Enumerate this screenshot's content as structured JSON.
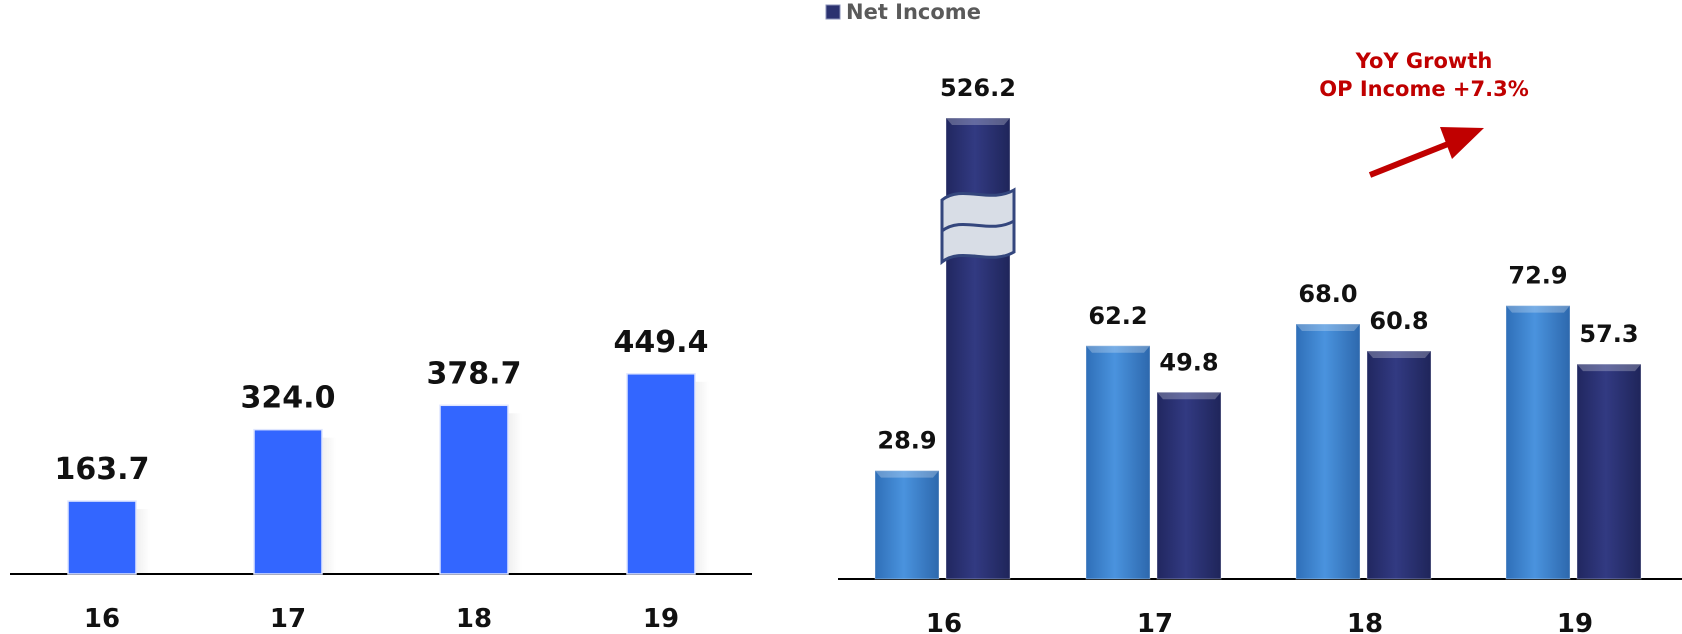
{
  "colors": {
    "left_bar": "#3366ff",
    "op_bar": "#3f88d6",
    "net_bar": "#2b3270",
    "break_fill": "#d8dde6",
    "break_stroke": "#34467d",
    "arrow": "#c00000"
  },
  "break_icon": "axis-break-icon",
  "chart_data": [
    {
      "type": "bar",
      "categories": [
        "16",
        "17",
        "18",
        "19"
      ],
      "series": [
        {
          "values": [
            163.7,
            324.0,
            378.7,
            449.4
          ],
          "labels": [
            "163.7",
            "324.0",
            "378.7",
            "449.4"
          ]
        }
      ],
      "ylim": [
        0,
        480
      ],
      "grid": false,
      "legend": "none"
    },
    {
      "type": "bar",
      "categories": [
        "16",
        "17",
        "18",
        "19"
      ],
      "series": [
        {
          "values": [
            28.9,
            62.2,
            68.0,
            72.9
          ],
          "labels": [
            "28.9",
            "62.2",
            "68.0",
            "72.9"
          ]
        },
        {
          "name": "Net Income",
          "values": [
            526.2,
            49.8,
            60.8,
            57.3
          ],
          "labels": [
            "526.2",
            "49.8",
            "60.8",
            "57.3"
          ]
        }
      ],
      "axis_break": {
        "category": "16",
        "series": "Net Income"
      },
      "grid": false,
      "legend": "top-left",
      "annotation": {
        "lines": [
          "YoY Growth",
          "OP Income +7.3%"
        ]
      }
    }
  ]
}
